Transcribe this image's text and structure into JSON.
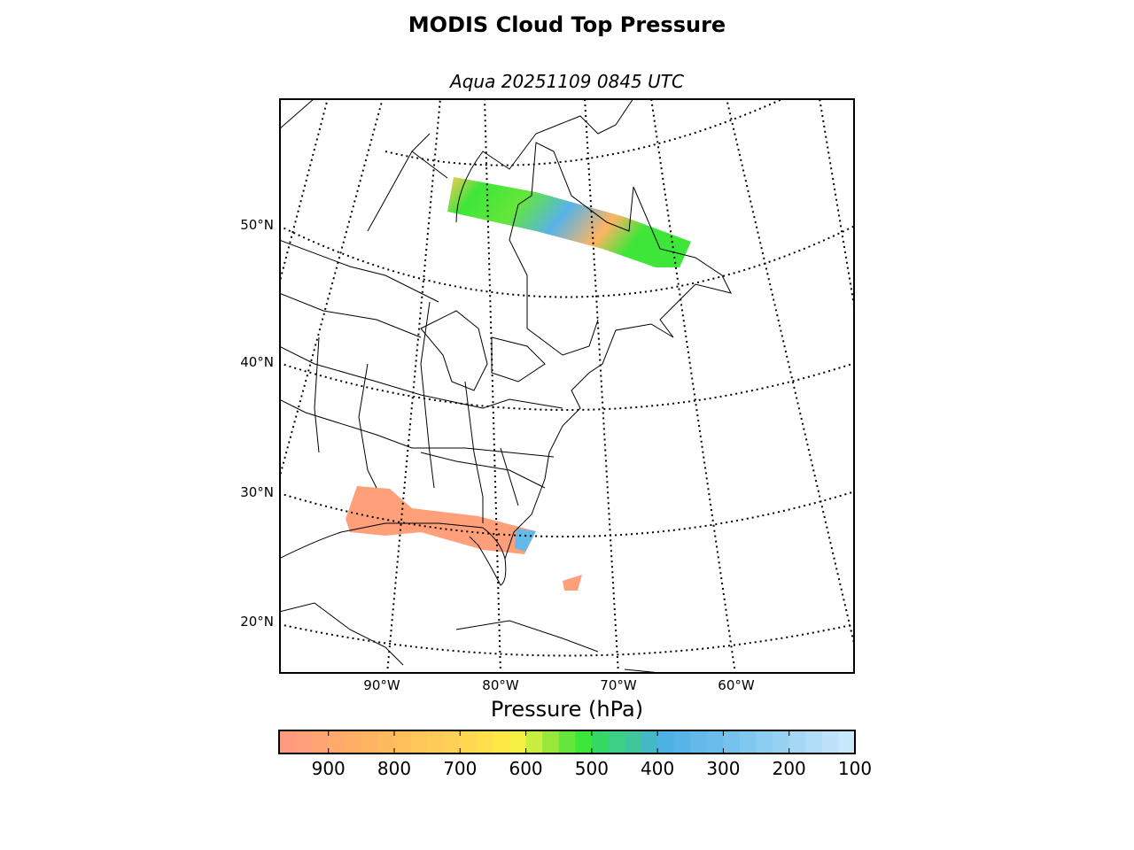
{
  "title": "MODIS Cloud Top Pressure",
  "subtitle": "Aqua 20251109 0845 UTC",
  "map": {
    "lat_labels": [
      "50°N",
      "40°N",
      "30°N",
      "20°N"
    ],
    "lon_labels": [
      "90°W",
      "80°W",
      "70°W",
      "60°W"
    ],
    "swath_colors": {
      "low": "#ffa07a",
      "mid": "#ffc65a",
      "green": "#3ee63a",
      "blue": "#58b3e8",
      "yellow": "#f5ef44"
    }
  },
  "colorbar": {
    "label": "Pressure (hPa)",
    "range": [
      975,
      100
    ],
    "tick_labels": [
      "900",
      "800",
      "700",
      "600",
      "500",
      "400",
      "300",
      "200",
      "100"
    ],
    "tick_values": [
      900,
      800,
      700,
      600,
      500,
      400,
      300,
      200,
      100
    ],
    "bin_size": 25,
    "colors": [
      "#ff9a7f",
      "#ffa07a",
      "#ffa572",
      "#ffaa6c",
      "#ffae66",
      "#ffb462",
      "#ffba5e",
      "#ffc05c",
      "#ffc65a",
      "#ffcb58",
      "#ffd056",
      "#ffd752",
      "#ffe04c",
      "#fde846",
      "#f5ef44",
      "#c8ee3f",
      "#98e83c",
      "#64e63a",
      "#3ee63a",
      "#36d864",
      "#3ccf86",
      "#40c69c",
      "#44b8c4",
      "#4eb1e4",
      "#58b3e8",
      "#62b9ea",
      "#6abdeb",
      "#74c2ed",
      "#80c8ef",
      "#8ccdf1",
      "#98d2f3",
      "#a6d8f6",
      "#b2ddf8",
      "#bde2fa",
      "#c8e8fc"
    ]
  }
}
